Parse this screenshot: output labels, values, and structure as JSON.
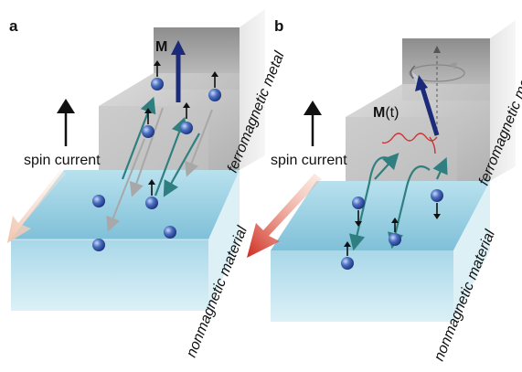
{
  "panels": [
    {
      "letter": "a",
      "magnetization_label": "M"
    },
    {
      "letter": "b",
      "magnetization_label_main": "M",
      "magnetization_label_paren": "(t)"
    }
  ],
  "labels": {
    "spin_current": "spin current",
    "ferromagnetic_metal": "ferromagnetic metal",
    "nonmagnetic_material": "nonmagnetic material"
  },
  "colors": {
    "magnetization_arrow": "#1c2a7a",
    "electron": "#3b5fb0",
    "teal_arrow": "#2f7f80",
    "gray_arrow": "#a8a8a8",
    "spin_arrow": "#111111",
    "pumped_flow_arrow": "#d23a2a",
    "faint_flow_arrow": "#f2c6b2",
    "ferromagnet": "#b8b8b8",
    "nonmagnet": "#8cc9de",
    "microwave_wave": "#d03030"
  },
  "icons": [
    "up-arrow-icon",
    "magnetization-arrow-icon",
    "precession-cone-icon",
    "electron-sphere-icon",
    "microwave-wave-icon"
  ]
}
